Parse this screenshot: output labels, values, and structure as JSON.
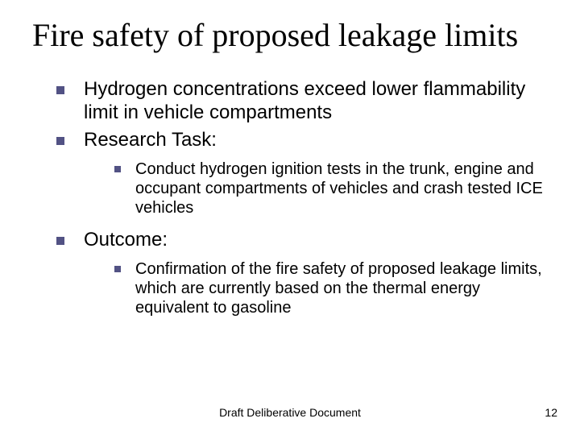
{
  "title": "Fire safety of proposed leakage limits",
  "bullets": [
    {
      "text": "Hydrogen concentrations exceed lower flammability limit in vehicle compartments",
      "children": []
    },
    {
      "text": "Research Task:",
      "children": [
        {
          "text": "Conduct hydrogen ignition tests in the trunk, engine and occupant compartments of vehicles and crash tested ICE vehicles"
        }
      ]
    },
    {
      "text": "Outcome:",
      "children": [
        {
          "text": "Confirmation of the fire safety of proposed leakage limits, which are currently based on the thermal energy equivalent to gasoline"
        }
      ]
    }
  ],
  "footer_center": "Draft Deliberative Document",
  "page_number": "12",
  "colors": {
    "bullet_square": "#525284",
    "background": "#ffffff",
    "text": "#000000"
  },
  "typography": {
    "title_font": "Times New Roman",
    "title_size_pt": 40,
    "body_font": "Verdana",
    "l1_size_pt": 24,
    "l2_size_pt": 20,
    "footer_size_pt": 14
  }
}
